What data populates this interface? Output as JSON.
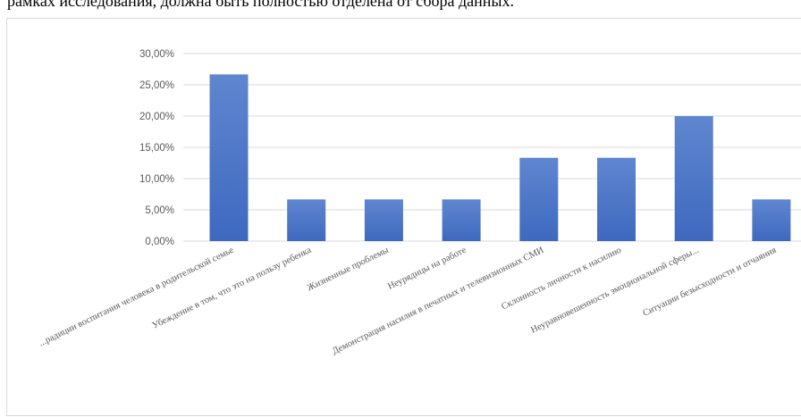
{
  "document": {
    "text_line": "рамках исследования, должна быть полностью отделена от сбора данных."
  },
  "chart_data": {
    "type": "bar",
    "categories": [
      "...радиции воспитания человека в родительской семье",
      "Убеждение в том, что это на пользу ребенка",
      "Жизненные проблемы",
      "Неурядицы на работе",
      "Демонстрация насилия в печатных и телевизионных СМИ",
      "Склонность личности к насилию",
      "Неуравновешенность эмоциональной сферы...",
      "Ситуации безысходности и отчаяния"
    ],
    "values": [
      26.67,
      6.67,
      6.67,
      6.67,
      13.33,
      13.33,
      20.0,
      6.67
    ],
    "ylim": [
      0,
      30
    ],
    "yticks": [
      "0,00%",
      "5,00%",
      "10,00%",
      "15,00%",
      "20,00%",
      "25,00%",
      "30,00%"
    ],
    "grid": true,
    "colors": {
      "bar_top": "#5f86cf",
      "bar_bottom": "#3e69bf",
      "grid": "#d9d9d9",
      "text": "#595959"
    }
  }
}
